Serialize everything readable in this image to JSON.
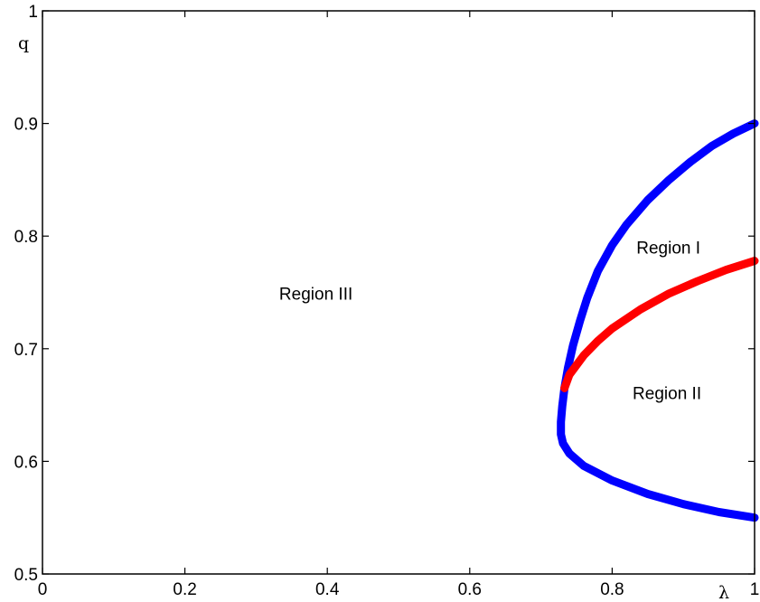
{
  "chart_data": {
    "type": "line",
    "title": "",
    "xlabel": "λ",
    "ylabel": "q",
    "xlim": [
      0,
      1
    ],
    "ylim": [
      0.5,
      1
    ],
    "grid": false,
    "x_ticks": [
      0,
      0.2,
      0.4,
      0.6,
      0.8,
      1
    ],
    "x_tick_labels": [
      "0",
      "0.2",
      "0.4",
      "0.6",
      "0.8",
      "1"
    ],
    "y_ticks": [
      0.5,
      0.6,
      0.7,
      0.8,
      0.9,
      1
    ],
    "y_tick_labels": [
      "0.5",
      "0.6",
      "0.7",
      "0.8",
      "0.9",
      "1"
    ],
    "series": [
      {
        "color": "#0000ff",
        "values": [
          [
            1.0,
            0.9
          ],
          [
            0.97,
            0.891
          ],
          [
            0.94,
            0.88
          ],
          [
            0.91,
            0.866
          ],
          [
            0.88,
            0.85
          ],
          [
            0.85,
            0.832
          ],
          [
            0.82,
            0.81
          ],
          [
            0.8,
            0.792
          ],
          [
            0.78,
            0.769
          ],
          [
            0.765,
            0.745
          ],
          [
            0.755,
            0.725
          ],
          [
            0.745,
            0.703
          ],
          [
            0.738,
            0.683
          ],
          [
            0.733,
            0.665
          ],
          [
            0.73,
            0.649
          ],
          [
            0.728,
            0.635
          ],
          [
            0.728,
            0.624
          ],
          [
            0.731,
            0.616
          ],
          [
            0.74,
            0.607
          ],
          [
            0.76,
            0.596
          ],
          [
            0.8,
            0.583
          ],
          [
            0.85,
            0.571
          ],
          [
            0.9,
            0.562
          ],
          [
            0.95,
            0.555
          ],
          [
            1.0,
            0.55
          ]
        ]
      },
      {
        "color": "#ff0000",
        "values": [
          [
            0.733,
            0.665
          ],
          [
            0.74,
            0.677
          ],
          [
            0.76,
            0.694
          ],
          [
            0.78,
            0.707
          ],
          [
            0.8,
            0.718
          ],
          [
            0.84,
            0.735
          ],
          [
            0.88,
            0.749
          ],
          [
            0.92,
            0.76
          ],
          [
            0.96,
            0.77
          ],
          [
            1.0,
            0.778
          ]
        ]
      }
    ],
    "annotations": [
      {
        "text": "Region I",
        "x": 0.879,
        "y": 0.79
      },
      {
        "text": "Region II",
        "x": 0.877,
        "y": 0.661
      },
      {
        "text": "Region III",
        "x": 0.384,
        "y": 0.749
      }
    ]
  }
}
